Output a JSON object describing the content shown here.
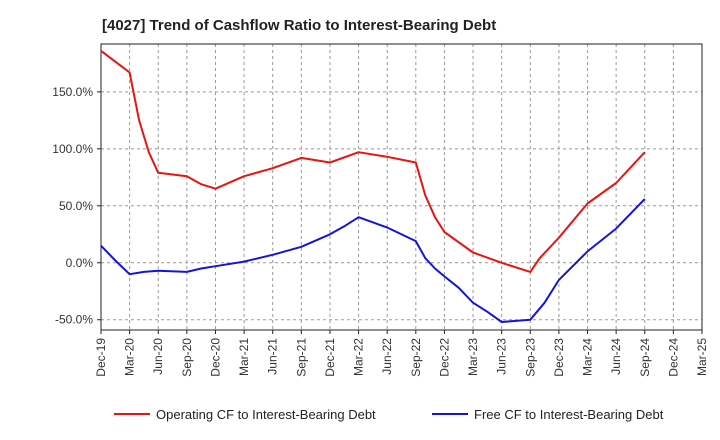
{
  "chart_data": {
    "type": "line",
    "title": "[4027]  Trend of Cashflow Ratio to Interest-Bearing Debt",
    "xlabel": "",
    "ylabel": "",
    "categories": [
      "Dec-19",
      "Mar-20",
      "Jun-20",
      "Sep-20",
      "Dec-20",
      "Mar-21",
      "Jun-21",
      "Sep-21",
      "Dec-21",
      "Mar-22",
      "Jun-22",
      "Sep-22",
      "Dec-22",
      "Mar-23",
      "Jun-23",
      "Sep-23",
      "Dec-23",
      "Mar-24",
      "Jun-24",
      "Sep-24",
      "Dec-24",
      "Mar-25"
    ],
    "y_ticks": [
      -50,
      0,
      50,
      100,
      150
    ],
    "y_tick_labels": [
      "-50.0%",
      "0.0%",
      "50.0%",
      "100.0%",
      "150.0%"
    ],
    "ylim": [
      -59,
      192
    ],
    "grid": true,
    "legend_position": "bottom",
    "series": [
      {
        "name": "Operating CF to Interest-Bearing Debt",
        "color": "#e8140f",
        "x": [
          0,
          1,
          1.33,
          1.67,
          2,
          3,
          3.5,
          4,
          5,
          6,
          7,
          8,
          9,
          10,
          11,
          11.33,
          11.67,
          12,
          13,
          14,
          15,
          15.33,
          16,
          17,
          18,
          19
        ],
        "values": [
          186,
          167,
          125,
          97,
          79,
          76,
          69,
          65,
          76,
          83,
          92,
          88,
          97,
          93,
          88,
          59,
          40,
          27,
          9,
          0,
          -8,
          4,
          22,
          52,
          70,
          97
        ]
      },
      {
        "name": "Free CF to Interest-Bearing Debt",
        "color": "#1414dc",
        "x": [
          0,
          0.5,
          1,
          1.5,
          2,
          3,
          3.5,
          4,
          5,
          6,
          7,
          8,
          8.5,
          9,
          10,
          11,
          11.33,
          11.67,
          12,
          12.5,
          13,
          13.5,
          14,
          14.5,
          15,
          15.5,
          16,
          17,
          18,
          19
        ],
        "values": [
          15,
          2,
          -10,
          -8,
          -7,
          -8,
          -5,
          -3,
          1,
          7,
          14,
          25,
          32,
          40,
          31,
          19,
          4,
          -5,
          -12,
          -22,
          -35,
          -43,
          -52,
          -51,
          -50,
          -35,
          -15,
          10,
          30,
          56
        ]
      }
    ]
  }
}
